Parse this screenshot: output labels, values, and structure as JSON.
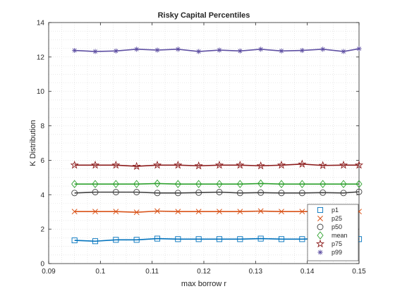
{
  "chart_data": {
    "type": "line",
    "title": "Risky Capital Percentiles",
    "xlabel": "max borrow r",
    "ylabel": "K Distribution",
    "xlim": [
      0.09,
      0.15
    ],
    "ylim": [
      0,
      14
    ],
    "xticks": [
      0.09,
      0.1,
      0.11,
      0.12,
      0.13,
      0.14,
      0.15
    ],
    "xtick_labels": [
      "0.09",
      "0.1",
      "0.11",
      "0.12",
      "0.13",
      "0.14",
      "0.15"
    ],
    "yticks": [
      0,
      2,
      4,
      6,
      8,
      10,
      12,
      14
    ],
    "ytick_labels": [
      "0",
      "2",
      "4",
      "6",
      "8",
      "10",
      "12",
      "14"
    ],
    "grid": "minor-dotted",
    "legend_position": "bottom-right",
    "x": [
      0.095,
      0.099,
      0.103,
      0.107,
      0.111,
      0.115,
      0.119,
      0.123,
      0.127,
      0.131,
      0.135,
      0.139,
      0.143,
      0.147,
      0.15
    ],
    "series": [
      {
        "name": "p1",
        "marker": "square",
        "color": "#0072BD",
        "values": [
          1.35,
          1.3,
          1.38,
          1.38,
          1.45,
          1.42,
          1.42,
          1.42,
          1.42,
          1.45,
          1.42,
          1.42,
          1.45,
          1.42,
          1.42
        ]
      },
      {
        "name": "p25",
        "marker": "x",
        "color": "#D95319",
        "values": [
          3.02,
          3.02,
          3.02,
          2.98,
          3.05,
          3.02,
          3.02,
          3.02,
          3.02,
          3.05,
          3.02,
          3.02,
          3.02,
          3.02,
          3.02
        ]
      },
      {
        "name": "p50",
        "marker": "circle",
        "color": "#404040",
        "values": [
          4.1,
          4.15,
          4.15,
          4.15,
          4.1,
          4.1,
          4.12,
          4.15,
          4.1,
          4.12,
          4.1,
          4.1,
          4.12,
          4.1,
          4.17
        ]
      },
      {
        "name": "mean",
        "marker": "diamond",
        "color": "#2CA02C",
        "values": [
          4.62,
          4.62,
          4.62,
          4.62,
          4.65,
          4.62,
          4.62,
          4.62,
          4.62,
          4.65,
          4.62,
          4.62,
          4.62,
          4.62,
          4.62
        ]
      },
      {
        "name": "p75",
        "marker": "pentagram",
        "color": "#8B1A1A",
        "values": [
          5.72,
          5.72,
          5.72,
          5.65,
          5.72,
          5.72,
          5.68,
          5.72,
          5.72,
          5.68,
          5.72,
          5.78,
          5.7,
          5.72,
          5.72
        ]
      },
      {
        "name": "p99",
        "marker": "asterisk",
        "color": "#5E4FA2",
        "values": [
          12.38,
          12.32,
          12.35,
          12.45,
          12.4,
          12.45,
          12.32,
          12.4,
          12.35,
          12.45,
          12.35,
          12.38,
          12.45,
          12.32,
          12.48
        ]
      }
    ]
  }
}
